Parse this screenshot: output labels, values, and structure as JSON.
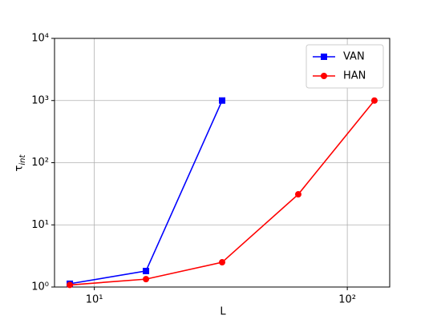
{
  "chart_data": {
    "type": "line",
    "x_label": "L",
    "y_label": "τint",
    "xscale": "log",
    "yscale": "log",
    "grid": true,
    "legend": "upper right",
    "xlim": [
      6.96,
      147.1
    ],
    "ylim": [
      1,
      10000
    ],
    "xticks": [
      {
        "value": 10,
        "label": "10¹"
      },
      {
        "value": 100,
        "label": "10²"
      }
    ],
    "yticks": [
      {
        "value": 1,
        "label": "10⁰"
      },
      {
        "value": 10,
        "label": "10¹"
      },
      {
        "value": 100,
        "label": "10²"
      },
      {
        "value": 1000,
        "label": "10³"
      },
      {
        "value": 10000,
        "label": "10⁴"
      }
    ],
    "series": [
      {
        "name": "VAN",
        "color": "#0000ff",
        "marker": "square",
        "x": [
          8,
          16,
          32
        ],
        "values": [
          1.13,
          1.81,
          1000
        ]
      },
      {
        "name": "HAN",
        "color": "#ff0000",
        "marker": "circle",
        "x": [
          8,
          16,
          32,
          64,
          128
        ],
        "values": [
          1.08,
          1.34,
          2.5,
          31,
          1000
        ]
      }
    ]
  }
}
